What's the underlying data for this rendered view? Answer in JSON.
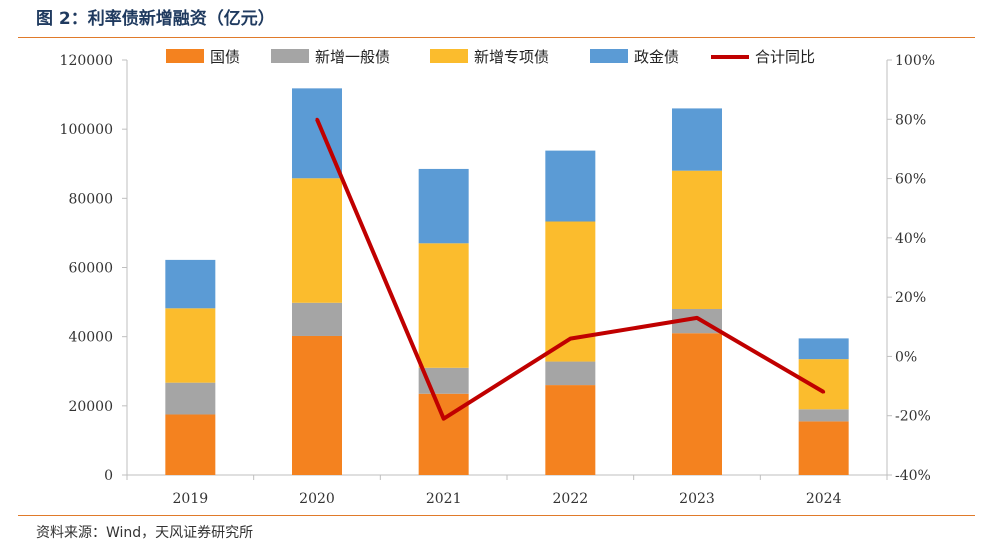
{
  "figure_title": "图 2：利率债新增融资（亿元）",
  "source": "资料来源：Wind，天风证券研究所",
  "chart_data": {
    "type": "bar",
    "stacked": true,
    "categories": [
      "2019",
      "2020",
      "2021",
      "2022",
      "2023",
      "2024"
    ],
    "series": [
      {
        "name": "国债",
        "color": "#f4821f",
        "values": [
          17500,
          40200,
          23500,
          26000,
          41000,
          15500
        ]
      },
      {
        "name": "新增一般债",
        "color": "#a5a5a5",
        "values": [
          9200,
          9600,
          7500,
          6800,
          7000,
          3500
        ]
      },
      {
        "name": "新增专项债",
        "color": "#fbbc2d",
        "values": [
          21500,
          36000,
          36000,
          40500,
          40000,
          14500
        ]
      },
      {
        "name": "政金债",
        "color": "#5b9bd5",
        "values": [
          14000,
          26000,
          21500,
          20500,
          18000,
          6000
        ]
      }
    ],
    "line_series": {
      "name": "合计同比",
      "color": "#c00000",
      "axis": "right",
      "values": [
        null,
        80,
        -21,
        6,
        13,
        -12
      ]
    },
    "y_left": {
      "min": 0,
      "max": 120000,
      "ticks": [
        "0",
        "20000",
        "40000",
        "60000",
        "80000",
        "100000",
        "120000"
      ]
    },
    "y_right": {
      "min": -40,
      "max": 100,
      "ticks": [
        "-40%",
        "-20%",
        "0%",
        "20%",
        "40%",
        "60%",
        "80%",
        "100%"
      ]
    },
    "legend_position": "top"
  }
}
